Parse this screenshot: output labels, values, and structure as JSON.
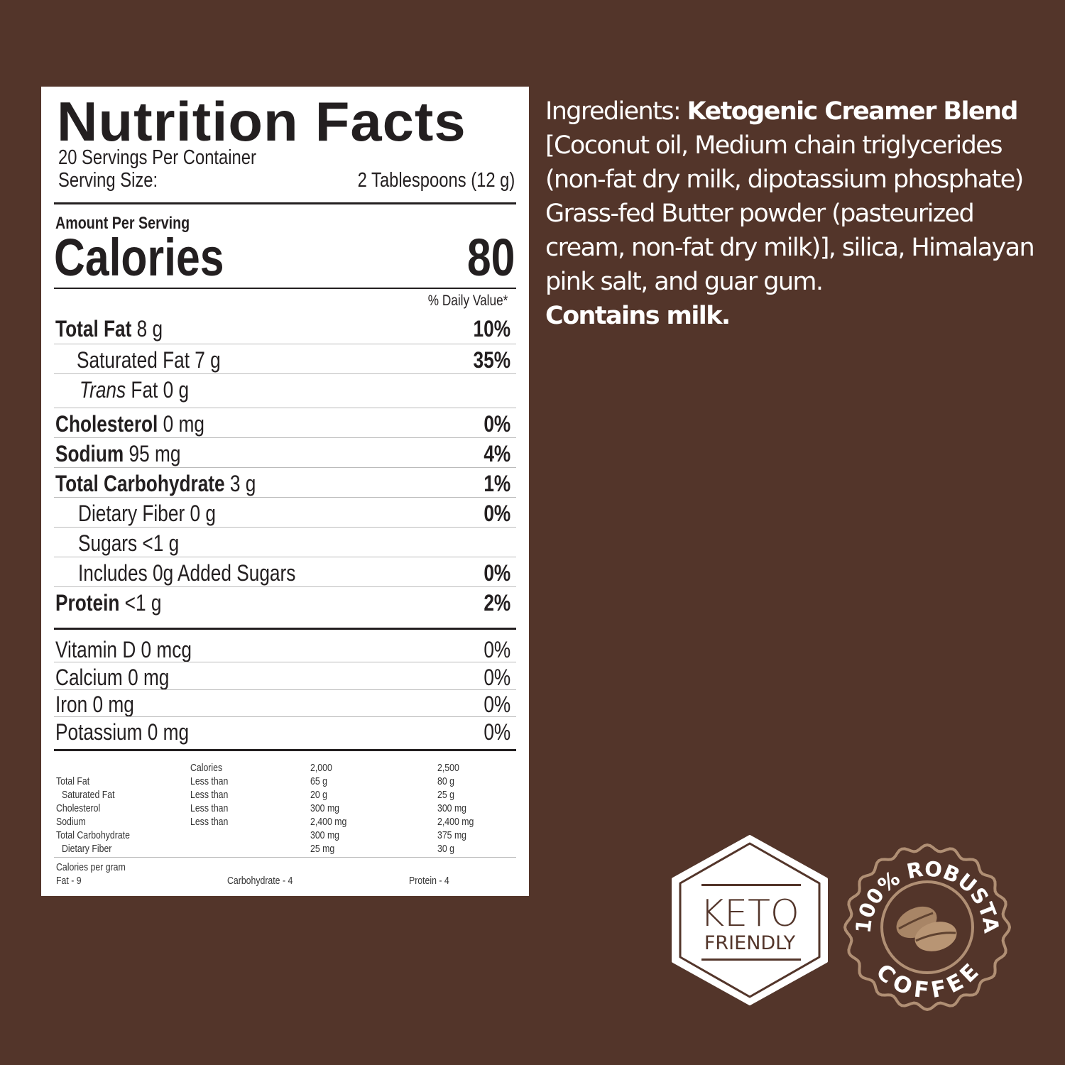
{
  "label": {
    "title": "Nutrition Facts",
    "servings": "20 Servings Per Container",
    "serving_size_label": "Serving Size:",
    "serving_size_value": "2 Tablespoons (12 g)",
    "amount_per_serving": "Amount Per Serving",
    "calories_label": "Calories",
    "calories_value": "80",
    "dv_header": "% Daily Value*",
    "nutrients": [
      {
        "name": "Total Fat",
        "amount": "8 g",
        "dv": "10%"
      },
      {
        "name": "Saturated Fat",
        "amount": "7 g",
        "dv": "35%"
      },
      {
        "name": "Trans",
        "name2": "Fat",
        "amount": "0 g",
        "dv": ""
      },
      {
        "name": "Cholesterol",
        "amount": "0 mg",
        "dv": "0%"
      },
      {
        "name": "Sodium",
        "amount": "95 mg",
        "dv": "4%"
      },
      {
        "name": "Total Carbohydrate",
        "amount": "3 g",
        "dv": "1%"
      },
      {
        "name": "Dietary Fiber",
        "amount": "0 g",
        "dv": "0%"
      },
      {
        "name": "Sugars",
        "amount": "<1 g",
        "dv": ""
      },
      {
        "name": "Includes 0g Added Sugars",
        "amount": "",
        "dv": "0%"
      },
      {
        "name": "Protein",
        "amount": "<1 g",
        "dv": "2%"
      }
    ],
    "vitamins": [
      {
        "name": "Vitamin D 0 mcg",
        "dv": "0%"
      },
      {
        "name": "Calcium 0 mg",
        "dv": "0%"
      },
      {
        "name": "Iron 0 mg",
        "dv": "0%"
      },
      {
        "name": "Potassium 0 mg",
        "dv": "0%"
      }
    ],
    "footnote_table": {
      "header": [
        "",
        "Calories",
        "2,000",
        "2,500"
      ],
      "rows": [
        [
          "Total Fat",
          "Less than",
          "65 g",
          "80 g"
        ],
        [
          " Saturated Fat",
          "Less than",
          "20 g",
          "25 g"
        ],
        [
          "Cholesterol",
          "Less than",
          "300 mg",
          "300 mg"
        ],
        [
          "Sodium",
          "Less than",
          "2,400 mg",
          "2,400 mg"
        ],
        [
          "Total Carbohydrate",
          "",
          "300 mg",
          "375 mg"
        ],
        [
          " Dietary Fiber",
          "",
          "25 mg",
          "30 g"
        ]
      ]
    },
    "calories_per_gram": "Calories per gram",
    "cpg": [
      "Fat - 9",
      "Carbohydrate - 4",
      "Protein - 4"
    ]
  },
  "ingredients": {
    "prefix": "Ingredients: ",
    "blend": "Ketogenic Creamer Blend",
    "body": " [Coconut oil, Medium chain triglycerides (non-fat dry milk, dipotassium phosphate) Grass-fed Butter powder (pasteurized cream, non-fat dry milk)], silica, Himalayan pink salt, and guar gum.",
    "allergen": "Contains milk."
  },
  "badges": {
    "keto_line1": "KETO",
    "keto_line2": "FRIENDLY",
    "robusta_top": "100% ROBUSTA",
    "robusta_bottom": "COFFEE"
  },
  "colors": {
    "background": "#53352a",
    "label": "#ffffff",
    "text": "#231f20",
    "seal": "#b08f74"
  }
}
